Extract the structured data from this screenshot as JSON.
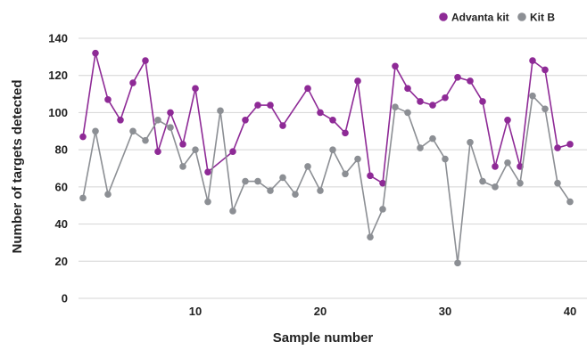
{
  "header": {
    "title_fragment": "",
    "title_color": "#2f66c8"
  },
  "chart_data": {
    "type": "line",
    "title": "",
    "xlabel": "Sample number",
    "ylabel": "Number of targets detected",
    "xlim": [
      0,
      41
    ],
    "ylim": [
      0,
      140
    ],
    "xticks": [
      10,
      20,
      30,
      40
    ],
    "yticks": [
      0,
      20,
      40,
      60,
      80,
      100,
      120,
      140
    ],
    "grid": true,
    "legend_position": "top-right",
    "x": [
      1,
      2,
      3,
      4,
      5,
      6,
      7,
      8,
      9,
      10,
      11,
      12,
      13,
      14,
      15,
      16,
      17,
      18,
      19,
      20,
      21,
      22,
      23,
      24,
      25,
      26,
      27,
      28,
      29,
      30,
      31,
      32,
      33,
      34,
      35,
      36,
      37,
      38,
      39,
      40
    ],
    "series": [
      {
        "name": "Advanta kit",
        "color": "#8e2a96",
        "values": [
          87,
          132,
          107,
          96,
          116,
          128,
          79,
          100,
          83,
          113,
          68,
          null,
          79,
          96,
          104,
          104,
          93,
          null,
          113,
          100,
          96,
          89,
          117,
          66,
          62,
          125,
          113,
          106,
          104,
          108,
          119,
          117,
          106,
          71,
          96,
          71,
          128,
          123,
          81,
          83
        ]
      },
      {
        "name": "Kit B",
        "color": "#8c8f94",
        "values": [
          54,
          90,
          56,
          null,
          90,
          85,
          96,
          92,
          71,
          80,
          52,
          101,
          47,
          63,
          63,
          58,
          65,
          56,
          71,
          58,
          80,
          67,
          75,
          33,
          48,
          103,
          100,
          81,
          86,
          75,
          19,
          84,
          63,
          60,
          73,
          62,
          109,
          102,
          62,
          52
        ]
      }
    ]
  }
}
